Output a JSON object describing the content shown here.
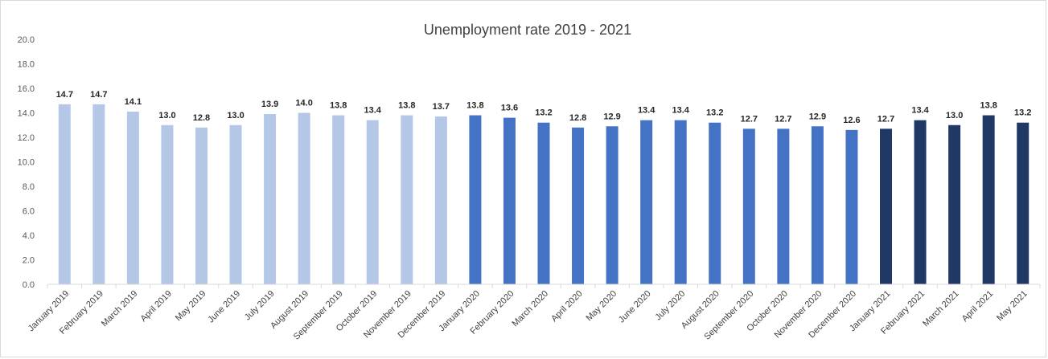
{
  "chart_data": {
    "type": "bar",
    "title": "Unemployment rate 2019 - 2021",
    "xlabel": "",
    "ylabel": "",
    "ylim": [
      0,
      20
    ],
    "yticks": [
      "0.0",
      "2.0",
      "4.0",
      "6.0",
      "8.0",
      "10.0",
      "12.0",
      "14.0",
      "16.0",
      "18.0",
      "20.0"
    ],
    "grid": false,
    "legend": "none",
    "categories": [
      "January 2019",
      "February 2019",
      "March 2019",
      "April 2019",
      "May 2019",
      "June 2019",
      "July 2019",
      "August 2019",
      "September 2019",
      "October 2019",
      "November 2019",
      "December 2019",
      "January 2020",
      "February 2020",
      "March 2020",
      "April 2020",
      "May 2020",
      "June 2020",
      "July 2020",
      "August 2020",
      "September 2020",
      "October 2020",
      "November 2020",
      "December 2020",
      "January 2021",
      "February 2021",
      "March 2021",
      "April 2021",
      "May 2021"
    ],
    "values": [
      14.7,
      14.7,
      14.1,
      13.0,
      12.8,
      13.0,
      13.9,
      14.0,
      13.8,
      13.4,
      13.8,
      13.7,
      13.8,
      13.6,
      13.2,
      12.8,
      12.9,
      13.4,
      13.4,
      13.2,
      12.7,
      12.7,
      12.9,
      12.6,
      12.7,
      13.4,
      13.0,
      13.8,
      13.2
    ],
    "data_labels": [
      "14.7",
      "14.7",
      "14.1",
      "13.0",
      "12.8",
      "13.0",
      "13.9",
      "14.0",
      "13.8",
      "13.4",
      "13.8",
      "13.7",
      "13.8",
      "13.6",
      "13.2",
      "12.8",
      "12.9",
      "13.4",
      "13.4",
      "13.2",
      "12.7",
      "12.7",
      "12.9",
      "12.6",
      "12.7",
      "13.4",
      "13.0",
      "13.8",
      "13.2"
    ],
    "colors": {
      "2019": "#b4c7e7",
      "2020": "#4472c4",
      "2021": "#203864",
      "axis": "#d9d9d9"
    }
  }
}
